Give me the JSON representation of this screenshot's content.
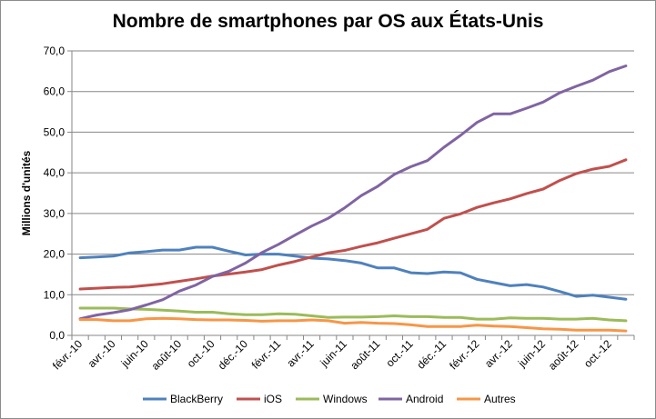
{
  "chart_data": {
    "type": "line",
    "title": "Nombre de smartphones par OS aux États-Unis",
    "xlabel": "",
    "ylabel": "Millions d'unités",
    "ylim": [
      0,
      70
    ],
    "y_ticks": [
      "0,0",
      "10,0",
      "20,0",
      "30,0",
      "40,0",
      "50,0",
      "60,0",
      "70,0"
    ],
    "grid": true,
    "legend_position": "bottom",
    "x": [
      "févr.-10",
      "mars-10",
      "avr.-10",
      "mai-10",
      "juin-10",
      "juil.-10",
      "août-10",
      "sept.-10",
      "oct.-10",
      "nov.-10",
      "déc.-10",
      "janv.-11",
      "févr.-11",
      "mars-11",
      "avr.-11",
      "mai-11",
      "juin-11",
      "juil.-11",
      "août-11",
      "sept.-11",
      "oct.-11",
      "nov.-11",
      "déc.-11",
      "janv.-12",
      "févr.-12",
      "mars-12",
      "avr.-12",
      "mai-12",
      "juin-12",
      "juil.-12",
      "août-12",
      "sept.-12",
      "oct.-12",
      "nov.-12"
    ],
    "x_tick_labels": [
      "févr.-10",
      "avr.-10",
      "juin-10",
      "août-10",
      "oct.-10",
      "déc.-10",
      "févr.-11",
      "avr.-11",
      "juin-11",
      "août-11",
      "oct.-11",
      "déc.-11",
      "févr.-12",
      "avr.-12",
      "juin-12",
      "août-12",
      "oct.-12"
    ],
    "series": [
      {
        "name": "BlackBerry",
        "color": "#4f81bd",
        "values": [
          19.1,
          19.3,
          19.5,
          20.3,
          20.6,
          21.0,
          21.0,
          21.7,
          21.7,
          20.7,
          19.8,
          20.0,
          20.0,
          19.5,
          19.0,
          18.8,
          18.4,
          17.8,
          16.6,
          16.6,
          15.4,
          15.2,
          15.6,
          15.4,
          13.8,
          13.0,
          12.2,
          12.5,
          11.9,
          10.8,
          9.6,
          9.9,
          9.4,
          8.9
        ]
      },
      {
        "name": "iOS",
        "color": "#c0504d",
        "values": [
          11.4,
          11.6,
          11.8,
          11.9,
          12.3,
          12.7,
          13.3,
          13.9,
          14.6,
          15.1,
          15.6,
          16.2,
          17.3,
          18.2,
          19.3,
          20.3,
          20.9,
          21.9,
          22.8,
          23.9,
          25.0,
          26.1,
          28.8,
          29.9,
          31.5,
          32.6,
          33.6,
          34.9,
          36.0,
          38.1,
          39.8,
          40.9,
          41.6,
          43.2
        ]
      },
      {
        "name": "Windows",
        "color": "#9bbb59",
        "values": [
          6.7,
          6.7,
          6.7,
          6.5,
          6.4,
          6.2,
          6.0,
          5.7,
          5.7,
          5.3,
          5.1,
          5.1,
          5.3,
          5.2,
          4.8,
          4.4,
          4.5,
          4.5,
          4.6,
          4.8,
          4.6,
          4.6,
          4.4,
          4.4,
          4.0,
          4.0,
          4.3,
          4.2,
          4.2,
          4.0,
          4.0,
          4.2,
          3.8,
          3.6
        ]
      },
      {
        "name": "Android",
        "color": "#8064a2",
        "values": [
          4.1,
          5.0,
          5.6,
          6.3,
          7.5,
          8.8,
          10.9,
          12.4,
          14.5,
          15.8,
          17.8,
          20.4,
          22.4,
          24.7,
          26.9,
          28.8,
          31.4,
          34.4,
          36.7,
          39.6,
          41.5,
          43.0,
          46.3,
          49.2,
          52.4,
          54.5,
          54.5,
          55.9,
          57.4,
          59.7,
          61.3,
          62.8,
          64.9,
          66.3
        ]
      },
      {
        "name": "Autres",
        "color": "#f79646",
        "values": [
          3.9,
          3.9,
          3.6,
          3.6,
          4.1,
          4.2,
          4.1,
          3.9,
          3.8,
          3.8,
          3.7,
          3.5,
          3.6,
          3.6,
          3.8,
          3.6,
          3.0,
          3.2,
          3.0,
          2.9,
          2.6,
          2.2,
          2.2,
          2.2,
          2.5,
          2.3,
          2.2,
          1.9,
          1.6,
          1.5,
          1.3,
          1.3,
          1.3,
          1.1
        ]
      }
    ]
  }
}
